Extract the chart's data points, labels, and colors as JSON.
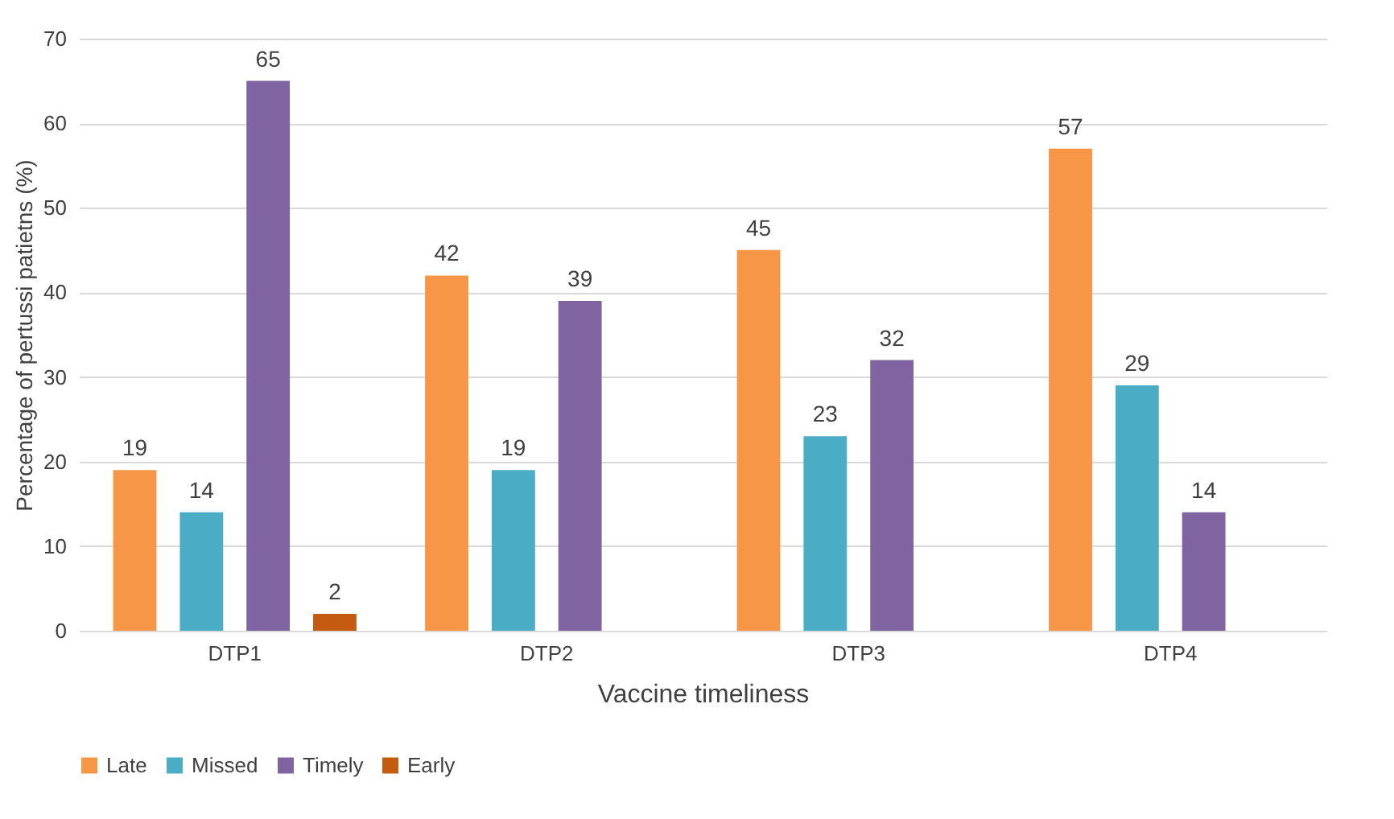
{
  "chart_data": {
    "type": "bar",
    "xlabel": "Vaccine timeliness",
    "ylabel": "Percentage of pertussi patietns (%)",
    "categories": [
      "DTP1",
      "DTP2",
      "DTP3",
      "DTP4"
    ],
    "series": [
      {
        "name": "Late",
        "color": "#f79646",
        "values": [
          19,
          42,
          45,
          57
        ]
      },
      {
        "name": "Missed",
        "color": "#4bacc6",
        "values": [
          14,
          19,
          23,
          29
        ]
      },
      {
        "name": "Timely",
        "color": "#8064a2",
        "values": [
          65,
          39,
          32,
          14
        ]
      },
      {
        "name": "Early",
        "color": "#c55a11",
        "values": [
          2,
          null,
          null,
          null
        ]
      }
    ],
    "ylim": [
      0,
      70
    ],
    "yticks": [
      0,
      10,
      20,
      30,
      40,
      50,
      60,
      70
    ],
    "grid": "y",
    "legend": "bottom",
    "data_labels": true
  }
}
